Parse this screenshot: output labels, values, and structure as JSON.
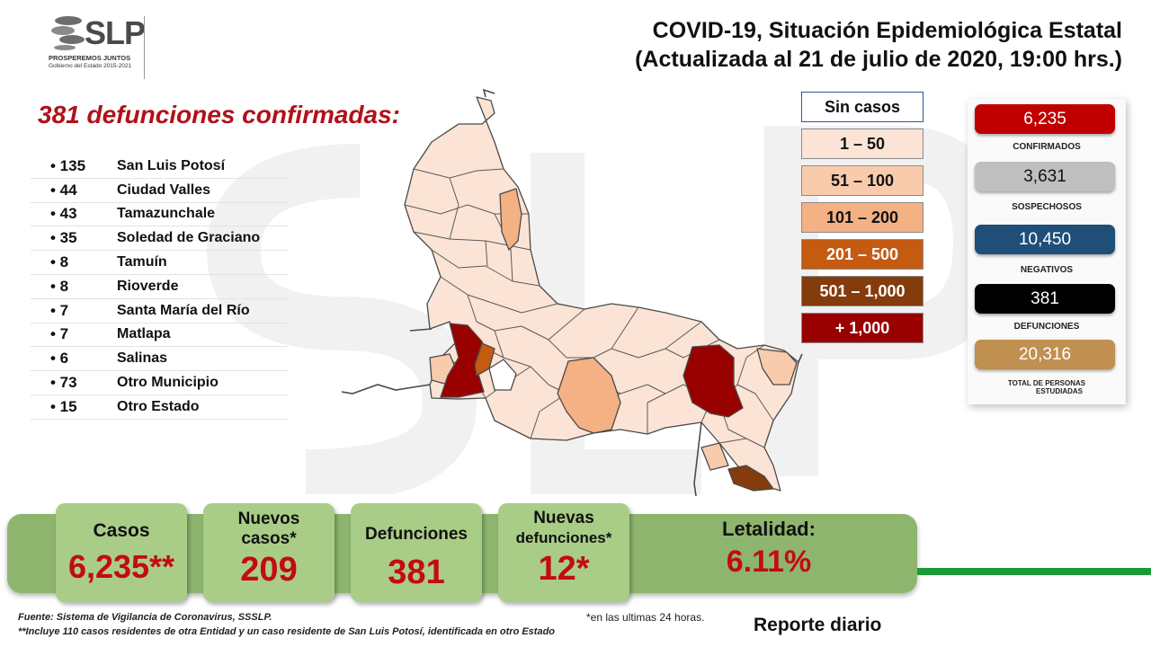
{
  "logo": {
    "text": "SLP",
    "tagline": "PROSPEREMOS JUNTOS",
    "government": "Gobierno del Estado 2015-2021"
  },
  "title": {
    "line1": "COVID-19, Situación Epidemiológica Estatal",
    "line2": "(Actualizada al 21 de julio de 2020, 19:00 hrs.)"
  },
  "deaths_heading": "381 defunciones confirmadas:",
  "deaths_list": [
    {
      "count": "• 135",
      "municipality": "San Luis Potosí"
    },
    {
      "count": "• 44",
      "municipality": "Ciudad Valles"
    },
    {
      "count": "• 43",
      "municipality": "Tamazunchale"
    },
    {
      "count": "• 35",
      "municipality": "Soledad de Graciano"
    },
    {
      "count": "• 8",
      "municipality": "Tamuín"
    },
    {
      "count": "• 8",
      "municipality": "Rioverde"
    },
    {
      "count": "• 7",
      "municipality": "Santa María del Río"
    },
    {
      "count": "• 7",
      "municipality": "Matlapa"
    },
    {
      "count": "• 6",
      "municipality": "Salinas"
    },
    {
      "count": "• 73",
      "municipality": "Otro Municipio"
    },
    {
      "count": "• 15",
      "municipality": "Otro Estado"
    }
  ],
  "legend": [
    {
      "label": "Sin casos",
      "color": "#ffffff"
    },
    {
      "label": "1 – 50",
      "color": "#fbe4d5"
    },
    {
      "label": "51 – 100",
      "color": "#f8cbad"
    },
    {
      "label": "101 – 200",
      "color": "#f4b183"
    },
    {
      "label": "201 – 500",
      "color": "#c55a11"
    },
    {
      "label": "501 – 1,000",
      "color": "#843c0c"
    },
    {
      "label": "+ 1,000",
      "color": "#990000"
    }
  ],
  "stats": {
    "confirmed": {
      "value": "6,235",
      "label": "CONFIRMADOS",
      "color": "#c00000"
    },
    "suspected": {
      "value": "3,631",
      "label": "SOSPECHOSOS",
      "color": "#bfbfbf"
    },
    "negative": {
      "value": "10,450",
      "label": "NEGATIVOS",
      "color": "#1f4e79"
    },
    "deaths": {
      "value": "381",
      "label": "DEFUNCIONES",
      "color": "#000000"
    },
    "studied": {
      "value": "20,316",
      "label_line1": "TOTAL DE PERSONAS",
      "label_line2": "ESTUDIADAS",
      "color": "#c09050"
    }
  },
  "banner": {
    "casos": {
      "label": "Casos",
      "value": "6,235**"
    },
    "nuevos_casos": {
      "label_line1": "Nuevos",
      "label_line2": "casos*",
      "value": "209"
    },
    "defunciones": {
      "label": "Defunciones",
      "value": "381"
    },
    "nuevas_defunciones": {
      "label_line1": "Nuevas",
      "label_line2": "defunciones*",
      "value": "12*"
    },
    "letalidad": {
      "label": "Letalidad:",
      "value": "6.11%"
    }
  },
  "footer": {
    "fuente": "Fuente: Sistema de Vigilancia  de Coronavirus, SSSLP.",
    "nota": "**Incluye 110 casos residentes de otra Entidad  y un caso residente de San Luis Potosí, identificada  en otro Estado",
    "ultimas": "*en las ultimas 24 horas.",
    "reporte": "Reporte diario"
  }
}
